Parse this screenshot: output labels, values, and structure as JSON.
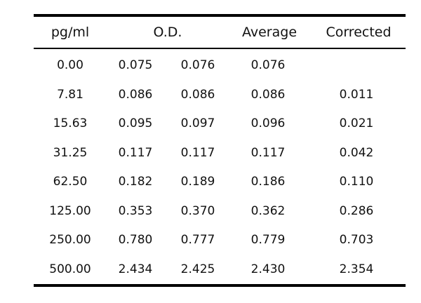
{
  "table": {
    "headers": {
      "concentration": "pg/ml",
      "od": "O.D.",
      "average": "Average",
      "corrected": "Corrected"
    },
    "rows": [
      {
        "concentration": "0.00",
        "od1": "0.075",
        "od2": "0.076",
        "average": "0.076",
        "corrected": ""
      },
      {
        "concentration": "7.81",
        "od1": "0.086",
        "od2": "0.086",
        "average": "0.086",
        "corrected": "0.011"
      },
      {
        "concentration": "15.63",
        "od1": "0.095",
        "od2": "0.097",
        "average": "0.096",
        "corrected": "0.021"
      },
      {
        "concentration": "31.25",
        "od1": "0.117",
        "od2": "0.117",
        "average": "0.117",
        "corrected": "0.042"
      },
      {
        "concentration": "62.50",
        "od1": "0.182",
        "od2": "0.189",
        "average": "0.186",
        "corrected": "0.110"
      },
      {
        "concentration": "125.00",
        "od1": "0.353",
        "od2": "0.370",
        "average": "0.362",
        "corrected": "0.286"
      },
      {
        "concentration": "250.00",
        "od1": "0.780",
        "od2": "0.777",
        "average": "0.779",
        "corrected": "0.703"
      },
      {
        "concentration": "500.00",
        "od1": "2.434",
        "od2": "2.425",
        "average": "2.430",
        "corrected": "2.354"
      }
    ]
  }
}
